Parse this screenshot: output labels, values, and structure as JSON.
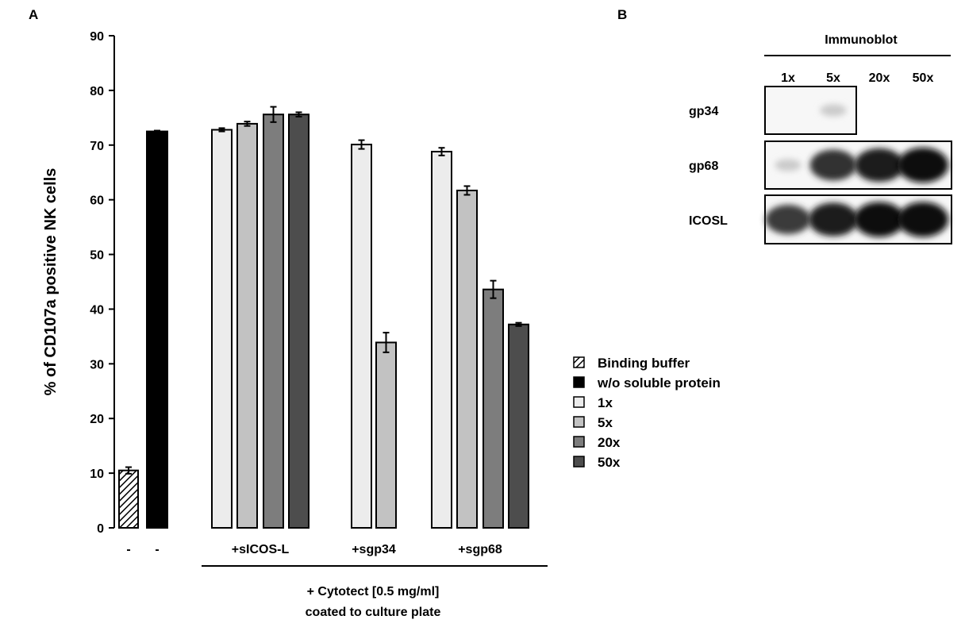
{
  "panels": {
    "a": "A",
    "b": "B"
  },
  "colors": {
    "binding_buffer": "#ffffff",
    "wo_soluble": "#000000",
    "1x": "#ececec",
    "5x": "#c2c2c2",
    "20x": "#7d7d7d",
    "50x": "#4d4d4d"
  },
  "chart_data": {
    "type": "bar",
    "ylabel": "% of CD107a positive NK cells",
    "ylim": [
      0,
      90
    ],
    "yticks": [
      "0",
      "10",
      "20",
      "30",
      "40",
      "50",
      "60",
      "70",
      "80",
      "90"
    ],
    "grid": false,
    "legend_position": "right",
    "groups": [
      {
        "label": "-",
        "bars": [
          {
            "series": "Binding buffer",
            "value": 10.5,
            "error": 0.6
          }
        ]
      },
      {
        "label": "-",
        "bars": [
          {
            "series": "w/o soluble protein",
            "value": 72.5,
            "error": 0.15
          }
        ]
      },
      {
        "label": "+sICOS-L",
        "bars": [
          {
            "series": "1x",
            "value": 72.8,
            "error": 0.3
          },
          {
            "series": "5x",
            "value": 73.9,
            "error": 0.4
          },
          {
            "series": "20x",
            "value": 75.6,
            "error": 1.4
          },
          {
            "series": "50x",
            "value": 75.6,
            "error": 0.4
          }
        ]
      },
      {
        "label": "+sgp34",
        "bars": [
          {
            "series": "1x",
            "value": 70.1,
            "error": 0.8
          },
          {
            "series": "5x",
            "value": 33.9,
            "error": 1.8
          }
        ]
      },
      {
        "label": "+sgp68",
        "bars": [
          {
            "series": "1x",
            "value": 68.8,
            "error": 0.7
          },
          {
            "series": "5x",
            "value": 61.7,
            "error": 0.8
          },
          {
            "series": "20x",
            "value": 43.6,
            "error": 1.6
          },
          {
            "series": "50x",
            "value": 37.2,
            "error": 0.3
          }
        ]
      }
    ],
    "bracket_label_lines": [
      "+ Cytotect [0.5 mg/ml]",
      "coated to culture plate"
    ],
    "legend": [
      {
        "label": "Binding buffer",
        "color": "#ffffff",
        "hatched": true
      },
      {
        "label": "w/o soluble protein",
        "color": "#000000"
      },
      {
        "label": "1x",
        "color": "#ececec"
      },
      {
        "label": "5x",
        "color": "#c2c2c2"
      },
      {
        "label": "20x",
        "color": "#7d7d7d"
      },
      {
        "label": "50x",
        "color": "#4d4d4d"
      }
    ]
  },
  "blot": {
    "title": "Immunoblot",
    "lanes": [
      "1x",
      "5x",
      "20x",
      "50x"
    ],
    "rows": [
      {
        "label": "gp34",
        "intensities": [
          0.0,
          0.15
        ]
      },
      {
        "label": "gp68",
        "intensities": [
          0.15,
          0.85,
          0.95,
          1.0
        ]
      },
      {
        "label": "ICOSL",
        "intensities": [
          0.8,
          0.95,
          1.0,
          1.0
        ]
      }
    ]
  }
}
